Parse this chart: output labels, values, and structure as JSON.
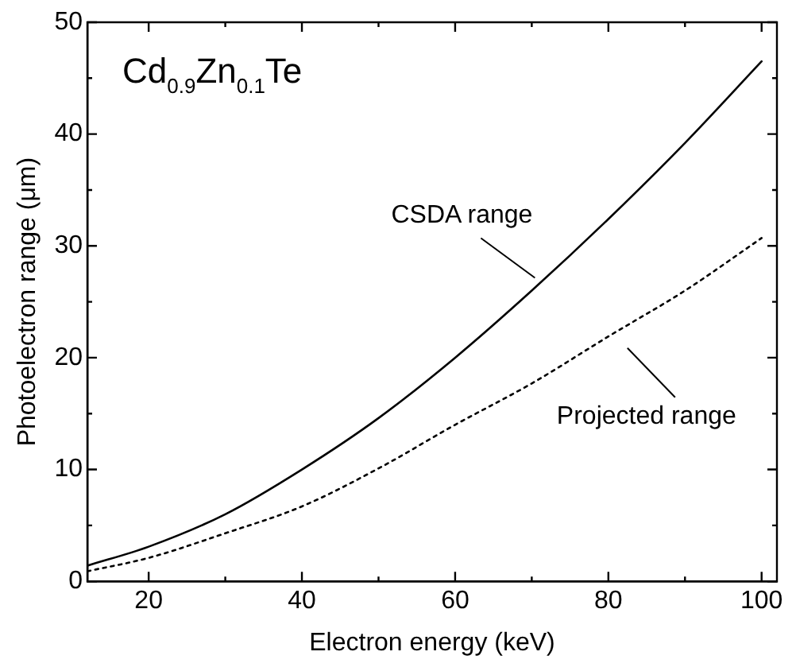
{
  "chart_data": {
    "type": "line",
    "xlabel": "Electron energy (keV)",
    "ylabel": "Photoelectron range (μm)",
    "xlim": [
      12,
      102
    ],
    "ylim": [
      0,
      50
    ],
    "xticks": [
      20,
      {
        "value": 30,
        "label": null
      },
      40,
      {
        "value": 50,
        "label": null
      },
      60,
      {
        "value": 70,
        "label": null
      },
      80,
      {
        "value": 90,
        "label": null
      },
      100
    ],
    "yticks": [
      0,
      {
        "value": 5,
        "label": null
      },
      10,
      {
        "value": 15,
        "label": null
      },
      20,
      {
        "value": 25,
        "label": null
      },
      30,
      {
        "value": 35,
        "label": null
      },
      40,
      {
        "value": 45,
        "label": null
      },
      50
    ],
    "x": [
      12,
      20,
      30,
      40,
      50,
      60,
      70,
      80,
      90,
      100
    ],
    "series": [
      {
        "color": "#000000",
        "line_style": "solid",
        "values": [
          1.4,
          3.1,
          6.0,
          10.0,
          14.6,
          20.0,
          26.0,
          32.4,
          39.2,
          46.5
        ]
      },
      {
        "color": "#000000",
        "line_style": "dotted",
        "values": [
          0.9,
          2.1,
          4.3,
          6.7,
          10.1,
          14.0,
          17.7,
          21.9,
          26.0,
          30.7
        ]
      }
    ],
    "marker": "none",
    "grid": false,
    "legend": false,
    "annotations": [
      "Cd$_{0.9}$Zn$_{0.1}$Te",
      {
        "text": "CSDA range",
        "x": 70,
        "y": 26
      },
      {
        "text": "Projected range",
        "x": 80,
        "y": 22
      }
    ]
  }
}
